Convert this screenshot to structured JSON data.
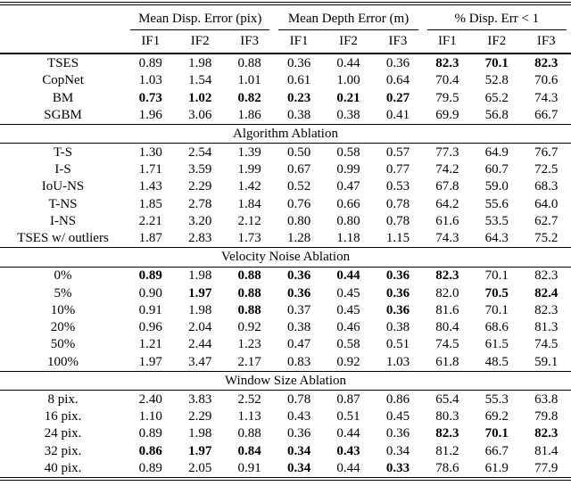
{
  "table": {
    "group_headers": [
      {
        "label": "Mean Disp. Error (pix)"
      },
      {
        "label": "Mean Depth Error (m)"
      },
      {
        "label": "% Disp. Err < 1"
      }
    ],
    "sub_headers": [
      "IF1",
      "IF2",
      "IF3",
      "IF1",
      "IF2",
      "IF3",
      "IF1",
      "IF2",
      "IF3"
    ],
    "sections": [
      {
        "title": null,
        "rows": [
          {
            "label": "TSES",
            "values": [
              "0.89",
              "1.98",
              "0.88",
              "0.36",
              "0.44",
              "0.36",
              "82.3",
              "70.1",
              "82.3"
            ],
            "bold": [
              0,
              0,
              0,
              0,
              0,
              0,
              1,
              1,
              1
            ]
          },
          {
            "label": "CopNet",
            "values": [
              "1.03",
              "1.54",
              "1.01",
              "0.61",
              "1.00",
              "0.64",
              "70.4",
              "52.8",
              "70.6"
            ],
            "bold": [
              0,
              0,
              0,
              0,
              0,
              0,
              0,
              0,
              0
            ]
          },
          {
            "label": "BM",
            "values": [
              "0.73",
              "1.02",
              "0.82",
              "0.23",
              "0.21",
              "0.27",
              "79.5",
              "65.2",
              "74.3"
            ],
            "bold": [
              1,
              1,
              1,
              1,
              1,
              1,
              0,
              0,
              0
            ]
          },
          {
            "label": "SGBM",
            "values": [
              "1.96",
              "3.06",
              "1.86",
              "0.38",
              "0.38",
              "0.41",
              "69.9",
              "56.8",
              "66.7"
            ],
            "bold": [
              0,
              0,
              0,
              0,
              0,
              0,
              0,
              0,
              0
            ]
          }
        ]
      },
      {
        "title": "Algorithm Ablation",
        "rows": [
          {
            "label": "T-S",
            "values": [
              "1.30",
              "2.54",
              "1.39",
              "0.50",
              "0.58",
              "0.57",
              "77.3",
              "64.9",
              "76.7"
            ],
            "bold": [
              0,
              0,
              0,
              0,
              0,
              0,
              0,
              0,
              0
            ]
          },
          {
            "label": "I-S",
            "values": [
              "1.71",
              "3.59",
              "1.99",
              "0.67",
              "0.99",
              "0.77",
              "74.2",
              "60.7",
              "72.5"
            ],
            "bold": [
              0,
              0,
              0,
              0,
              0,
              0,
              0,
              0,
              0
            ]
          },
          {
            "label": "IoU-NS",
            "values": [
              "1.43",
              "2.29",
              "1.42",
              "0.52",
              "0.47",
              "0.53",
              "67.8",
              "59.0",
              "68.3"
            ],
            "bold": [
              0,
              0,
              0,
              0,
              0,
              0,
              0,
              0,
              0
            ]
          },
          {
            "label": "T-NS",
            "values": [
              "1.85",
              "2.78",
              "1.84",
              "0.76",
              "0.66",
              "0.78",
              "64.2",
              "55.6",
              "64.0"
            ],
            "bold": [
              0,
              0,
              0,
              0,
              0,
              0,
              0,
              0,
              0
            ]
          },
          {
            "label": "I-NS",
            "values": [
              "2.21",
              "3.20",
              "2.12",
              "0.80",
              "0.80",
              "0.78",
              "61.6",
              "53.5",
              "62.7"
            ],
            "bold": [
              0,
              0,
              0,
              0,
              0,
              0,
              0,
              0,
              0
            ]
          },
          {
            "label": "TSES w/ outliers",
            "values": [
              "1.87",
              "2.83",
              "1.73",
              "1.28",
              "1.18",
              "1.15",
              "74.3",
              "64.3",
              "75.2"
            ],
            "bold": [
              0,
              0,
              0,
              0,
              0,
              0,
              0,
              0,
              0
            ]
          }
        ]
      },
      {
        "title": "Velocity Noise Ablation",
        "rows": [
          {
            "label": "0%",
            "values": [
              "0.89",
              "1.98",
              "0.88",
              "0.36",
              "0.44",
              "0.36",
              "82.3",
              "70.1",
              "82.3"
            ],
            "bold": [
              1,
              0,
              1,
              1,
              1,
              1,
              1,
              0,
              0
            ]
          },
          {
            "label": "5%",
            "values": [
              "0.90",
              "1.97",
              "0.88",
              "0.36",
              "0.45",
              "0.36",
              "82.0",
              "70.5",
              "82.4"
            ],
            "bold": [
              0,
              1,
              1,
              1,
              0,
              1,
              0,
              1,
              1
            ]
          },
          {
            "label": "10%",
            "values": [
              "0.91",
              "1.98",
              "0.88",
              "0.37",
              "0.45",
              "0.36",
              "81.6",
              "70.1",
              "82.3"
            ],
            "bold": [
              0,
              0,
              1,
              0,
              0,
              1,
              0,
              0,
              0
            ]
          },
          {
            "label": "20%",
            "values": [
              "0.96",
              "2.04",
              "0.92",
              "0.38",
              "0.46",
              "0.38",
              "80.4",
              "68.6",
              "81.3"
            ],
            "bold": [
              0,
              0,
              0,
              0,
              0,
              0,
              0,
              0,
              0
            ]
          },
          {
            "label": "50%",
            "values": [
              "1.21",
              "2.44",
              "1.23",
              "0.47",
              "0.58",
              "0.51",
              "74.5",
              "61.5",
              "74.5"
            ],
            "bold": [
              0,
              0,
              0,
              0,
              0,
              0,
              0,
              0,
              0
            ]
          },
          {
            "label": "100%",
            "values": [
              "1.97",
              "3.47",
              "2.17",
              "0.83",
              "0.92",
              "1.03",
              "61.8",
              "48.5",
              "59.1"
            ],
            "bold": [
              0,
              0,
              0,
              0,
              0,
              0,
              0,
              0,
              0
            ]
          }
        ]
      },
      {
        "title": "Window Size Ablation",
        "rows": [
          {
            "label": "8 pix.",
            "values": [
              "2.40",
              "3.83",
              "2.52",
              "0.78",
              "0.87",
              "0.86",
              "65.4",
              "55.3",
              "63.8"
            ],
            "bold": [
              0,
              0,
              0,
              0,
              0,
              0,
              0,
              0,
              0
            ]
          },
          {
            "label": "16 pix.",
            "values": [
              "1.10",
              "2.29",
              "1.13",
              "0.43",
              "0.51",
              "0.45",
              "80.3",
              "69.2",
              "79.8"
            ],
            "bold": [
              0,
              0,
              0,
              0,
              0,
              0,
              0,
              0,
              0
            ]
          },
          {
            "label": "24 pix.",
            "values": [
              "0.89",
              "1.98",
              "0.88",
              "0.36",
              "0.44",
              "0.36",
              "82.3",
              "70.1",
              "82.3"
            ],
            "bold": [
              0,
              0,
              0,
              0,
              0,
              0,
              1,
              1,
              1
            ]
          },
          {
            "label": "32 pix.",
            "values": [
              "0.86",
              "1.97",
              "0.84",
              "0.34",
              "0.43",
              "0.34",
              "81.2",
              "66.7",
              "81.4"
            ],
            "bold": [
              1,
              1,
              1,
              1,
              1,
              0,
              0,
              0,
              0
            ]
          },
          {
            "label": "40 pix.",
            "values": [
              "0.89",
              "2.05",
              "0.91",
              "0.34",
              "0.44",
              "0.33",
              "78.6",
              "61.9",
              "77.9"
            ],
            "bold": [
              0,
              0,
              0,
              1,
              0,
              1,
              0,
              0,
              0
            ]
          }
        ]
      }
    ]
  }
}
